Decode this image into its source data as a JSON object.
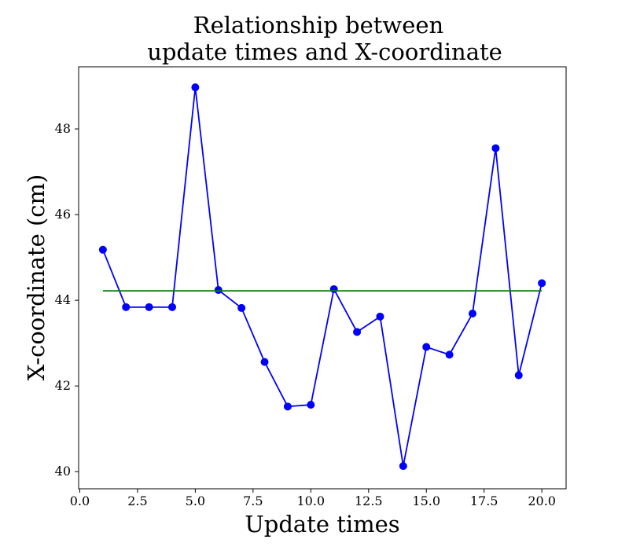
{
  "chart_data": {
    "type": "line",
    "title_lines": [
      "Relationship between",
      "update times and X-coordinate"
    ],
    "xlabel": "Update times",
    "ylabel": "X-coordinate (cm)",
    "xlim": [
      -0.05,
      21.05
    ],
    "ylim": [
      39.6,
      49.45
    ],
    "x_ticks": [
      0.0,
      2.5,
      5.0,
      7.5,
      10.0,
      12.5,
      15.0,
      17.5,
      20.0
    ],
    "x_tick_labels": [
      "0.0",
      "2.5",
      "5.0",
      "7.5",
      "10.0",
      "12.5",
      "15.0",
      "17.5",
      "20.0"
    ],
    "y_ticks": [
      40,
      42,
      44,
      46,
      48
    ],
    "y_tick_labels": [
      "40",
      "42",
      "44",
      "46",
      "48"
    ],
    "grid": false,
    "series": [
      {
        "type": "line",
        "marker": "circle",
        "color": "#0000ff",
        "x": [
          1,
          2,
          3,
          4,
          5,
          6,
          7,
          8,
          9,
          10,
          11,
          12,
          13,
          14,
          15,
          16,
          17,
          18,
          19,
          20
        ],
        "y": [
          45.18,
          43.84,
          43.84,
          43.84,
          48.97,
          44.24,
          43.82,
          42.56,
          41.52,
          41.56,
          44.26,
          43.26,
          43.62,
          40.13,
          42.91,
          42.73,
          43.69,
          47.55,
          42.25,
          44.4
        ]
      },
      {
        "type": "line",
        "marker": "none",
        "color": "#008000",
        "x": [
          1,
          20
        ],
        "y": [
          44.22,
          44.22
        ]
      }
    ]
  }
}
